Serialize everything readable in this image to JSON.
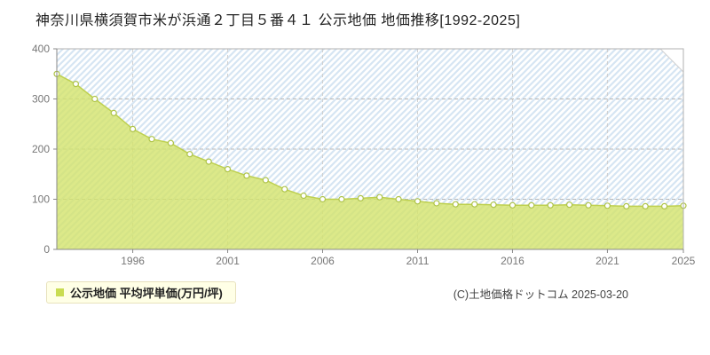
{
  "title": "神奈川県横須賀市米が浜通２丁目５番４１ 公示地価 地価推移[1992-2025]",
  "legend": {
    "marker_color": "#c9dc52",
    "label": "公示地価 平均坪単価(万円/坪)"
  },
  "copyright": "(C)土地価格ドットコム 2025-03-20",
  "chart_data": {
    "type": "area",
    "title": "神奈川県横須賀市米が浜通２丁目５番４１ 公示地価 地価推移[1992-2025]",
    "series_name": "公示地価 平均坪単価(万円/坪)",
    "xlabel": "",
    "ylabel": "平均坪単価(万円/坪)",
    "x": [
      1992,
      1993,
      1994,
      1995,
      1996,
      1997,
      1998,
      1999,
      2000,
      2001,
      2002,
      2003,
      2004,
      2005,
      2006,
      2007,
      2008,
      2009,
      2010,
      2011,
      2012,
      2013,
      2014,
      2015,
      2016,
      2017,
      2018,
      2019,
      2020,
      2021,
      2022,
      2023,
      2024,
      2025
    ],
    "values": [
      350,
      330,
      300,
      272,
      240,
      220,
      212,
      190,
      175,
      160,
      147,
      138,
      120,
      107,
      100,
      100,
      102,
      104,
      100,
      96,
      92,
      90,
      90,
      89,
      88,
      88,
      88,
      89,
      88,
      87,
      86,
      86,
      86,
      87
    ],
    "ylim": [
      0,
      400
    ],
    "yticks": [
      0,
      100,
      200,
      300,
      400
    ],
    "xticks": [
      1996,
      2001,
      2006,
      2011,
      2016,
      2021,
      2025
    ],
    "grid": true,
    "legend_position": "bottom-left",
    "colors": {
      "area_fill": "#d3e36b",
      "line": "#bed04f",
      "marker_fill": "#ffffff",
      "marker_stroke": "#aec348",
      "stripe": "#d6e5f3",
      "grid": "#b5b5b5",
      "axis": "#888888",
      "tick_label": "#777777"
    }
  }
}
